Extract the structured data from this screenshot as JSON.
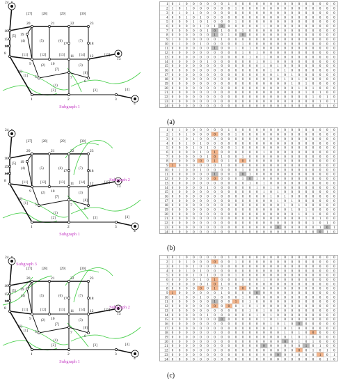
{
  "panels": [
    {
      "label": "(a)",
      "subgraphs": [
        "Subgraph 1"
      ],
      "highlights": [
        [
          5,
          7,
          "g"
        ],
        [
          6,
          6,
          "g"
        ],
        [
          7,
          6,
          "g"
        ],
        [
          7,
          10,
          "g"
        ],
        [
          10,
          6,
          "g"
        ]
      ]
    },
    {
      "label": "(b)",
      "subgraphs": [
        "Subgraph 1",
        "Subgraph 2"
      ],
      "highlights": [
        [
          1,
          6,
          "o"
        ],
        [
          5,
          6,
          "o"
        ],
        [
          6,
          6,
          "o"
        ],
        [
          7,
          4,
          "o"
        ],
        [
          7,
          6,
          "o"
        ],
        [
          7,
          10,
          "o"
        ],
        [
          8,
          0,
          "o"
        ],
        [
          10,
          6,
          "g"
        ],
        [
          10,
          10,
          "g"
        ],
        [
          11,
          6,
          "o"
        ],
        [
          11,
          11,
          "g"
        ],
        [
          22,
          15,
          "g"
        ],
        [
          22,
          22,
          "g"
        ],
        [
          23,
          21,
          "g"
        ]
      ]
    },
    {
      "label": "(c)",
      "subgraphs": [
        "Subgraph 1",
        "Subgraph 2",
        "Subgraph 3"
      ],
      "highlights": [
        [
          1,
          6,
          "o"
        ],
        [
          5,
          6,
          "o"
        ],
        [
          6,
          6,
          "o"
        ],
        [
          7,
          4,
          "o"
        ],
        [
          7,
          6,
          "o"
        ],
        [
          7,
          10,
          "o"
        ],
        [
          8,
          0,
          "o"
        ],
        [
          8,
          12,
          "g"
        ],
        [
          10,
          6,
          "g"
        ],
        [
          10,
          9,
          "o"
        ],
        [
          11,
          6,
          "o"
        ],
        [
          11,
          8,
          "o"
        ],
        [
          14,
          7,
          "g"
        ],
        [
          15,
          18,
          "g"
        ],
        [
          17,
          20,
          "o"
        ],
        [
          19,
          16,
          "g"
        ],
        [
          20,
          13,
          "g"
        ],
        [
          20,
          19,
          "g"
        ],
        [
          21,
          18,
          "o"
        ],
        [
          22,
          15,
          "g"
        ],
        [
          22,
          21,
          "o"
        ]
      ]
    }
  ],
  "matrix": [
    "010000001000000000000000",
    "101000000100000000000000",
    "010100000000000000000000",
    "001010000000000000000000",
    "000101000100000000000000",
    "000010100000010000000000",
    "000001010010000000000000",
    "000000101000000000000000",
    "100000010000000000000000",
    "010010000010000000000000",
    "000000100101000000000000",
    "000000000010100000000000",
    "000000000001010000000000",
    "000001000000101000000000",
    "000000000000010100000000",
    "000000000000001010000000",
    "000000000000000101000000",
    "000000000000000010100000",
    "000000000000000001010000",
    "000000000000000000101000",
    "000000000000000000010100",
    "000000000000000000001010",
    "000000000000000000000101",
    "000000000000000000000010"
  ]
}
